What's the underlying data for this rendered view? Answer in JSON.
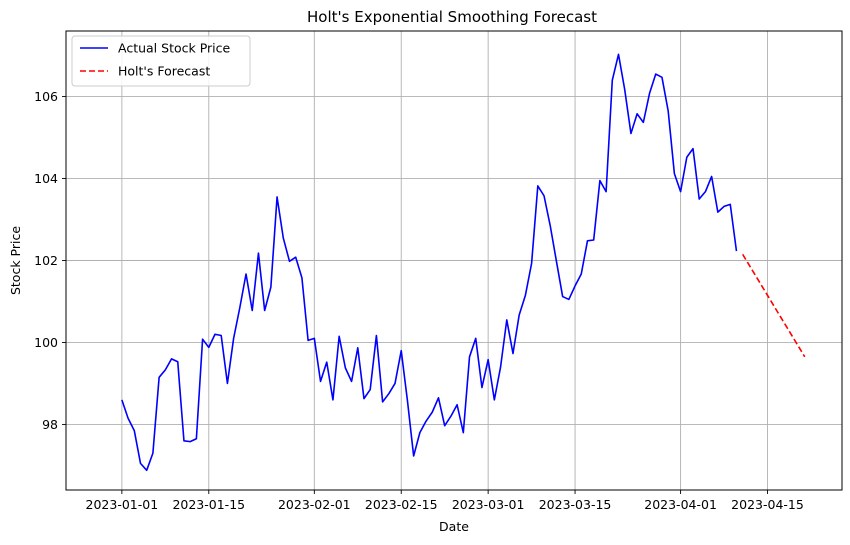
{
  "chart_data": {
    "type": "line",
    "title": "Holt's Exponential Smoothing Forecast",
    "xlabel": "Date",
    "ylabel": "Stock Price",
    "x_type": "date",
    "xlim": [
      "2022-12-23",
      "2023-04-27"
    ],
    "ylim": [
      96.4,
      107.6
    ],
    "x_ticks": [
      "2023-01-01",
      "2023-01-15",
      "2023-02-01",
      "2023-02-15",
      "2023-03-01",
      "2023-03-15",
      "2023-04-01",
      "2023-04-15"
    ],
    "y_ticks": [
      98,
      100,
      102,
      104,
      106
    ],
    "grid": true,
    "legend_position": "top-left",
    "series": [
      {
        "name": "Actual Stock Price",
        "color": "#0000ff",
        "style": "solid",
        "x": [
          "2023-01-01",
          "2023-01-02",
          "2023-01-03",
          "2023-01-04",
          "2023-01-05",
          "2023-01-06",
          "2023-01-07",
          "2023-01-08",
          "2023-01-09",
          "2023-01-10",
          "2023-01-11",
          "2023-01-12",
          "2023-01-13",
          "2023-01-14",
          "2023-01-15",
          "2023-01-16",
          "2023-01-17",
          "2023-01-18",
          "2023-01-19",
          "2023-01-20",
          "2023-01-21",
          "2023-01-22",
          "2023-01-23",
          "2023-01-24",
          "2023-01-25",
          "2023-01-26",
          "2023-01-27",
          "2023-01-28",
          "2023-01-29",
          "2023-01-30",
          "2023-01-31",
          "2023-02-01",
          "2023-02-02",
          "2023-02-03",
          "2023-02-04",
          "2023-02-05",
          "2023-02-06",
          "2023-02-07",
          "2023-02-08",
          "2023-02-09",
          "2023-02-10",
          "2023-02-11",
          "2023-02-12",
          "2023-02-13",
          "2023-02-14",
          "2023-02-15",
          "2023-02-16",
          "2023-02-17",
          "2023-02-18",
          "2023-02-19",
          "2023-02-20",
          "2023-02-21",
          "2023-02-22",
          "2023-02-23",
          "2023-02-24",
          "2023-02-25",
          "2023-02-26",
          "2023-02-27",
          "2023-02-28",
          "2023-03-01",
          "2023-03-02",
          "2023-03-03",
          "2023-03-04",
          "2023-03-05",
          "2023-03-06",
          "2023-03-07",
          "2023-03-08",
          "2023-03-09",
          "2023-03-10",
          "2023-03-11",
          "2023-03-12",
          "2023-03-13",
          "2023-03-14",
          "2023-03-15",
          "2023-03-16",
          "2023-03-17",
          "2023-03-18",
          "2023-03-19",
          "2023-03-20",
          "2023-03-21",
          "2023-03-22",
          "2023-03-23",
          "2023-03-24",
          "2023-03-25",
          "2023-03-26",
          "2023-03-27",
          "2023-03-28",
          "2023-03-29",
          "2023-03-30",
          "2023-03-31",
          "2023-04-01",
          "2023-04-02",
          "2023-04-03",
          "2023-04-04",
          "2023-04-05",
          "2023-04-06",
          "2023-04-07",
          "2023-04-08",
          "2023-04-09",
          "2023-04-10"
        ],
        "y": [
          98.6,
          98.15,
          97.85,
          97.05,
          96.88,
          97.3,
          99.15,
          99.33,
          99.6,
          99.53,
          97.6,
          97.58,
          97.65,
          100.08,
          99.88,
          100.2,
          100.17,
          99.0,
          100.1,
          100.85,
          101.67,
          100.78,
          102.18,
          100.78,
          101.35,
          103.55,
          102.55,
          101.98,
          102.08,
          101.58,
          100.05,
          100.1,
          99.05,
          99.52,
          98.6,
          100.15,
          99.38,
          99.05,
          99.87,
          98.63,
          98.85,
          100.17,
          98.55,
          98.75,
          99.0,
          99.8,
          98.58,
          97.23,
          97.8,
          98.08,
          98.3,
          98.65,
          97.97,
          98.2,
          98.48,
          97.8,
          99.65,
          100.1,
          98.9,
          99.58,
          98.6,
          99.4,
          100.55,
          99.73,
          100.67,
          101.15,
          101.93,
          103.82,
          103.58,
          102.85,
          101.98,
          101.12,
          101.05,
          101.38,
          101.67,
          102.48,
          102.5,
          103.95,
          103.68,
          106.4,
          107.03,
          106.17,
          105.1,
          105.58,
          105.37,
          106.08,
          106.55,
          106.47,
          105.65,
          104.12,
          103.68,
          104.52,
          104.73,
          103.5,
          103.68,
          104.05,
          103.18,
          103.32,
          103.37,
          102.23
        ]
      },
      {
        "name": "Holt's Forecast",
        "color": "#ff0000",
        "style": "dashed",
        "x": [
          "2023-04-11",
          "2023-04-12",
          "2023-04-13",
          "2023-04-14",
          "2023-04-15",
          "2023-04-16",
          "2023-04-17",
          "2023-04-18",
          "2023-04-19",
          "2023-04-20",
          "2023-04-21"
        ],
        "y": [
          102.15,
          101.9,
          101.65,
          101.4,
          101.15,
          100.9,
          100.65,
          100.4,
          100.15,
          99.9,
          99.65
        ]
      }
    ]
  }
}
